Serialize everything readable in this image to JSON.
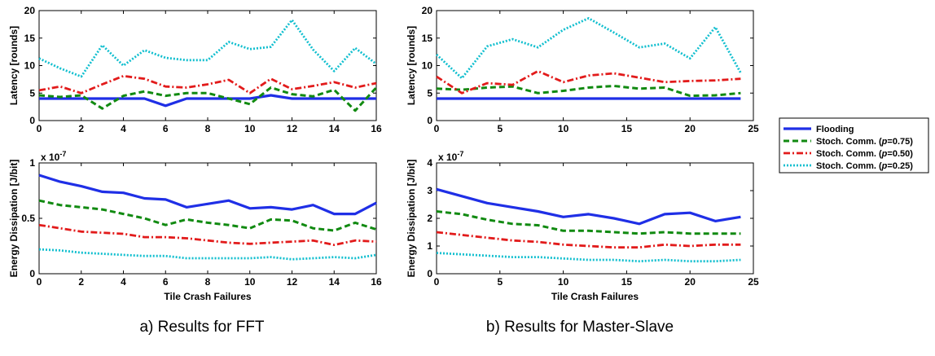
{
  "colors": {
    "Flooding": "#1f2fe6",
    "Stoch. Comm. (p=0.75)": "#118a11",
    "Stoch. Comm. (p=0.50)": "#e21b1b",
    "Stoch. Comm. (p=0.25)": "#12bfcf"
  },
  "captions": {
    "left": "a) Results for FFT",
    "right": "b) Results for Master-Slave"
  },
  "legend": {
    "entries": [
      {
        "prefix": "Flooding",
        "p": "",
        "suffix": ""
      },
      {
        "prefix": "Stoch. Comm. (",
        "p": "p",
        "suffix": "=0.75)"
      },
      {
        "prefix": "Stoch. Comm. (",
        "p": "p",
        "suffix": "=0.50)"
      },
      {
        "prefix": "Stoch. Comm. (",
        "p": "p",
        "suffix": "=0.25)"
      }
    ]
  },
  "chart_data": [
    {
      "id": "fft-latency",
      "type": "line",
      "title": "",
      "xlabel": "",
      "ylabel": "Latency [rounds]",
      "xlim": [
        0,
        16
      ],
      "ylim": [
        0,
        20
      ],
      "xticks": [
        0,
        2,
        4,
        6,
        8,
        10,
        12,
        14,
        16
      ],
      "yticks": [
        0,
        5,
        10,
        15,
        20
      ],
      "grid": false,
      "x": [
        0,
        1,
        2,
        3,
        4,
        5,
        6,
        7,
        8,
        9,
        10,
        11,
        12,
        13,
        14,
        15,
        16
      ],
      "series": [
        {
          "name": "Flooding",
          "values": [
            4,
            4,
            4,
            4,
            4,
            4,
            2.7,
            4,
            4,
            4,
            4,
            4.6,
            4,
            4,
            4,
            4,
            4
          ]
        },
        {
          "name": "Stoch. Comm. (p=0.75)",
          "values": [
            4.6,
            4.3,
            4.6,
            2.2,
            4.5,
            5.3,
            4.5,
            5,
            5,
            4,
            3,
            6,
            4.8,
            4.4,
            5.6,
            1.8,
            6
          ]
        },
        {
          "name": "Stoch. Comm. (p=0.50)",
          "values": [
            5.5,
            6.2,
            5,
            6.6,
            8.1,
            7.6,
            6.2,
            6,
            6.6,
            7.4,
            5,
            7.6,
            5.7,
            6.3,
            7,
            6,
            6.8
          ]
        },
        {
          "name": "Stoch. Comm. (p=0.25)",
          "values": [
            11.3,
            9.5,
            8,
            13.7,
            10,
            12.8,
            11.4,
            11,
            11,
            14.3,
            13,
            13.4,
            18.3,
            12.9,
            9,
            13.2,
            10.3
          ]
        }
      ]
    },
    {
      "id": "fft-energy",
      "type": "line",
      "title": "",
      "xlabel": "Tile Crash Failures",
      "ylabel": "Energy Dissipation [J/bit]",
      "scale_label": "x 10",
      "scale_exp": "-7",
      "xlim": [
        0,
        16
      ],
      "ylim": [
        0,
        1
      ],
      "xticks": [
        0,
        2,
        4,
        6,
        8,
        10,
        12,
        14,
        16
      ],
      "yticks": [
        0,
        0.5,
        1
      ],
      "grid": false,
      "x": [
        0,
        1,
        2,
        3,
        4,
        5,
        6,
        7,
        8,
        9,
        10,
        11,
        12,
        13,
        14,
        15,
        16
      ],
      "series": [
        {
          "name": "Flooding",
          "values": [
            0.89,
            0.83,
            0.79,
            0.74,
            0.73,
            0.68,
            0.67,
            0.6,
            0.63,
            0.66,
            0.59,
            0.6,
            0.58,
            0.62,
            0.54,
            0.54,
            0.64
          ]
        },
        {
          "name": "Stoch. Comm. (p=0.75)",
          "values": [
            0.66,
            0.62,
            0.6,
            0.58,
            0.54,
            0.5,
            0.44,
            0.49,
            0.46,
            0.44,
            0.41,
            0.49,
            0.48,
            0.41,
            0.39,
            0.46,
            0.4
          ]
        },
        {
          "name": "Stoch. Comm. (p=0.50)",
          "values": [
            0.44,
            0.41,
            0.38,
            0.37,
            0.36,
            0.33,
            0.33,
            0.32,
            0.3,
            0.28,
            0.27,
            0.28,
            0.29,
            0.3,
            0.26,
            0.3,
            0.29
          ]
        },
        {
          "name": "Stoch. Comm. (p=0.25)",
          "values": [
            0.22,
            0.21,
            0.19,
            0.18,
            0.17,
            0.16,
            0.16,
            0.14,
            0.14,
            0.14,
            0.14,
            0.15,
            0.13,
            0.14,
            0.15,
            0.14,
            0.17
          ]
        }
      ]
    },
    {
      "id": "ms-latency",
      "type": "line",
      "title": "",
      "xlabel": "",
      "ylabel": "Latency [rounds]",
      "xlim": [
        0,
        25
      ],
      "ylim": [
        0,
        20
      ],
      "xticks": [
        0,
        5,
        10,
        15,
        20,
        25
      ],
      "yticks": [
        0,
        5,
        10,
        15,
        20
      ],
      "grid": false,
      "x": [
        0,
        2,
        4,
        6,
        8,
        10,
        12,
        14,
        16,
        18,
        20,
        22,
        24
      ],
      "series": [
        {
          "name": "Flooding",
          "values": [
            4,
            4,
            4,
            4,
            4,
            4,
            4,
            4,
            4,
            4,
            4,
            4,
            4
          ]
        },
        {
          "name": "Stoch. Comm. (p=0.75)",
          "values": [
            5.8,
            5.6,
            6,
            6.2,
            5,
            5.4,
            6,
            6.3,
            5.8,
            6,
            4.5,
            4.6,
            5
          ]
        },
        {
          "name": "Stoch. Comm. (p=0.50)",
          "values": [
            8,
            5,
            6.8,
            6.5,
            9,
            7,
            8.2,
            8.6,
            7.8,
            7,
            7.2,
            7.3,
            7.6
          ]
        },
        {
          "name": "Stoch. Comm. (p=0.25)",
          "values": [
            12,
            7.7,
            13.5,
            14.8,
            13.3,
            16.5,
            18.6,
            16,
            13.3,
            14,
            11.3,
            17,
            8.7
          ]
        }
      ]
    },
    {
      "id": "ms-energy",
      "type": "line",
      "title": "",
      "xlabel": "Tile Crash Failures",
      "ylabel": "Energy Dissipation [J/bit]",
      "scale_label": "x 10",
      "scale_exp": "-7",
      "xlim": [
        0,
        25
      ],
      "ylim": [
        0,
        4
      ],
      "xticks": [
        0,
        5,
        10,
        15,
        20,
        25
      ],
      "yticks": [
        0,
        1,
        2,
        3,
        4
      ],
      "grid": false,
      "x": [
        0,
        2,
        4,
        6,
        8,
        10,
        12,
        14,
        16,
        18,
        20,
        22,
        24
      ],
      "series": [
        {
          "name": "Flooding",
          "values": [
            3.05,
            2.8,
            2.55,
            2.4,
            2.25,
            2.05,
            2.15,
            2,
            1.8,
            2.15,
            2.2,
            1.9,
            2.05
          ]
        },
        {
          "name": "Stoch. Comm. (p=0.75)",
          "values": [
            2.25,
            2.15,
            1.95,
            1.8,
            1.75,
            1.55,
            1.55,
            1.5,
            1.45,
            1.5,
            1.45,
            1.45,
            1.45
          ]
        },
        {
          "name": "Stoch. Comm. (p=0.50)",
          "values": [
            1.5,
            1.4,
            1.3,
            1.2,
            1.15,
            1.05,
            1,
            0.95,
            0.95,
            1.05,
            1,
            1.05,
            1.05
          ]
        },
        {
          "name": "Stoch. Comm. (p=0.25)",
          "values": [
            0.75,
            0.7,
            0.65,
            0.6,
            0.6,
            0.55,
            0.5,
            0.5,
            0.45,
            0.5,
            0.45,
            0.45,
            0.5
          ]
        }
      ]
    }
  ]
}
